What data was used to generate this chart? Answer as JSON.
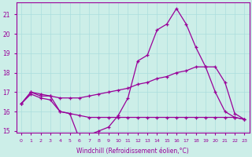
{
  "xlabel": "Windchill (Refroidissement éolien,°C)",
  "bg_color": "#cceee8",
  "line_color": "#990099",
  "grid_color": "#aadddd",
  "x": [
    0,
    1,
    2,
    3,
    4,
    5,
    6,
    7,
    8,
    9,
    10,
    11,
    12,
    13,
    14,
    15,
    16,
    17,
    18,
    19,
    20,
    21,
    22,
    23
  ],
  "series1": [
    16.4,
    17.0,
    16.8,
    16.8,
    16.0,
    15.9,
    14.6,
    14.8,
    15.0,
    15.2,
    15.8,
    16.7,
    18.6,
    18.9,
    20.2,
    20.5,
    21.3,
    20.5,
    19.3,
    18.3,
    17.0,
    16.0,
    15.7,
    15.6
  ],
  "series2": [
    16.4,
    17.0,
    16.9,
    16.8,
    16.7,
    16.7,
    16.7,
    16.8,
    16.9,
    17.0,
    17.1,
    17.2,
    17.4,
    17.5,
    17.7,
    17.8,
    18.0,
    18.1,
    18.3,
    18.3,
    18.3,
    17.5,
    15.9,
    15.6
  ],
  "series3": [
    16.4,
    16.9,
    16.7,
    16.6,
    16.0,
    15.9,
    15.8,
    15.7,
    15.7,
    15.7,
    15.7,
    15.7,
    15.7,
    15.7,
    15.7,
    15.7,
    15.7,
    15.7,
    15.7,
    15.7,
    15.7,
    15.7,
    15.7,
    15.6
  ],
  "ylim": [
    14.9,
    21.6
  ],
  "yticks": [
    15,
    16,
    17,
    18,
    19,
    20,
    21
  ],
  "xlim": [
    -0.5,
    23.5
  ]
}
